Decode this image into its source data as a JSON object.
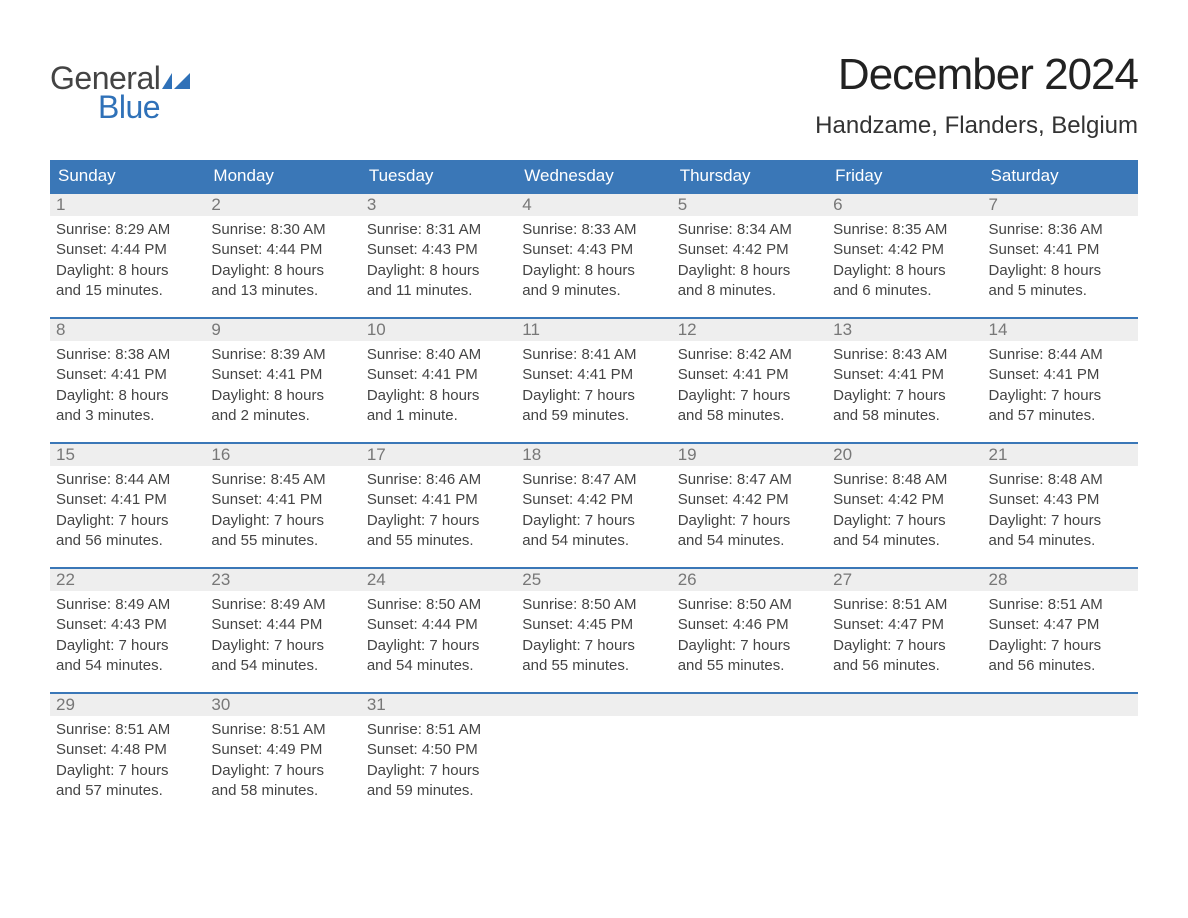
{
  "logo": {
    "text_general": "General",
    "text_blue": "Blue",
    "flag_color": "#2f71b8"
  },
  "title": "December 2024",
  "location": "Handzame, Flanders, Belgium",
  "colors": {
    "header_bg": "#3a77b7",
    "header_text": "#ffffff",
    "daynum_bg": "#eeeeee",
    "daynum_text": "#777777",
    "body_text": "#444444",
    "rule": "#3a77b7",
    "page_bg": "#ffffff",
    "title_text": "#222222",
    "logo_general": "#444444",
    "logo_blue": "#2f71b8"
  },
  "typography": {
    "title_fontsize": 44,
    "location_fontsize": 24,
    "weekday_fontsize": 17,
    "daynum_fontsize": 17,
    "body_fontsize": 15,
    "logo_fontsize": 32,
    "font_family": "Arial"
  },
  "weekdays": [
    "Sunday",
    "Monday",
    "Tuesday",
    "Wednesday",
    "Thursday",
    "Friday",
    "Saturday"
  ],
  "weeks": [
    [
      {
        "n": "1",
        "sunrise": "Sunrise: 8:29 AM",
        "sunset": "Sunset: 4:44 PM",
        "dl1": "Daylight: 8 hours",
        "dl2": "and 15 minutes."
      },
      {
        "n": "2",
        "sunrise": "Sunrise: 8:30 AM",
        "sunset": "Sunset: 4:44 PM",
        "dl1": "Daylight: 8 hours",
        "dl2": "and 13 minutes."
      },
      {
        "n": "3",
        "sunrise": "Sunrise: 8:31 AM",
        "sunset": "Sunset: 4:43 PM",
        "dl1": "Daylight: 8 hours",
        "dl2": "and 11 minutes."
      },
      {
        "n": "4",
        "sunrise": "Sunrise: 8:33 AM",
        "sunset": "Sunset: 4:43 PM",
        "dl1": "Daylight: 8 hours",
        "dl2": "and 9 minutes."
      },
      {
        "n": "5",
        "sunrise": "Sunrise: 8:34 AM",
        "sunset": "Sunset: 4:42 PM",
        "dl1": "Daylight: 8 hours",
        "dl2": "and 8 minutes."
      },
      {
        "n": "6",
        "sunrise": "Sunrise: 8:35 AM",
        "sunset": "Sunset: 4:42 PM",
        "dl1": "Daylight: 8 hours",
        "dl2": "and 6 minutes."
      },
      {
        "n": "7",
        "sunrise": "Sunrise: 8:36 AM",
        "sunset": "Sunset: 4:41 PM",
        "dl1": "Daylight: 8 hours",
        "dl2": "and 5 minutes."
      }
    ],
    [
      {
        "n": "8",
        "sunrise": "Sunrise: 8:38 AM",
        "sunset": "Sunset: 4:41 PM",
        "dl1": "Daylight: 8 hours",
        "dl2": "and 3 minutes."
      },
      {
        "n": "9",
        "sunrise": "Sunrise: 8:39 AM",
        "sunset": "Sunset: 4:41 PM",
        "dl1": "Daylight: 8 hours",
        "dl2": "and 2 minutes."
      },
      {
        "n": "10",
        "sunrise": "Sunrise: 8:40 AM",
        "sunset": "Sunset: 4:41 PM",
        "dl1": "Daylight: 8 hours",
        "dl2": "and 1 minute."
      },
      {
        "n": "11",
        "sunrise": "Sunrise: 8:41 AM",
        "sunset": "Sunset: 4:41 PM",
        "dl1": "Daylight: 7 hours",
        "dl2": "and 59 minutes."
      },
      {
        "n": "12",
        "sunrise": "Sunrise: 8:42 AM",
        "sunset": "Sunset: 4:41 PM",
        "dl1": "Daylight: 7 hours",
        "dl2": "and 58 minutes."
      },
      {
        "n": "13",
        "sunrise": "Sunrise: 8:43 AM",
        "sunset": "Sunset: 4:41 PM",
        "dl1": "Daylight: 7 hours",
        "dl2": "and 58 minutes."
      },
      {
        "n": "14",
        "sunrise": "Sunrise: 8:44 AM",
        "sunset": "Sunset: 4:41 PM",
        "dl1": "Daylight: 7 hours",
        "dl2": "and 57 minutes."
      }
    ],
    [
      {
        "n": "15",
        "sunrise": "Sunrise: 8:44 AM",
        "sunset": "Sunset: 4:41 PM",
        "dl1": "Daylight: 7 hours",
        "dl2": "and 56 minutes."
      },
      {
        "n": "16",
        "sunrise": "Sunrise: 8:45 AM",
        "sunset": "Sunset: 4:41 PM",
        "dl1": "Daylight: 7 hours",
        "dl2": "and 55 minutes."
      },
      {
        "n": "17",
        "sunrise": "Sunrise: 8:46 AM",
        "sunset": "Sunset: 4:41 PM",
        "dl1": "Daylight: 7 hours",
        "dl2": "and 55 minutes."
      },
      {
        "n": "18",
        "sunrise": "Sunrise: 8:47 AM",
        "sunset": "Sunset: 4:42 PM",
        "dl1": "Daylight: 7 hours",
        "dl2": "and 54 minutes."
      },
      {
        "n": "19",
        "sunrise": "Sunrise: 8:47 AM",
        "sunset": "Sunset: 4:42 PM",
        "dl1": "Daylight: 7 hours",
        "dl2": "and 54 minutes."
      },
      {
        "n": "20",
        "sunrise": "Sunrise: 8:48 AM",
        "sunset": "Sunset: 4:42 PM",
        "dl1": "Daylight: 7 hours",
        "dl2": "and 54 minutes."
      },
      {
        "n": "21",
        "sunrise": "Sunrise: 8:48 AM",
        "sunset": "Sunset: 4:43 PM",
        "dl1": "Daylight: 7 hours",
        "dl2": "and 54 minutes."
      }
    ],
    [
      {
        "n": "22",
        "sunrise": "Sunrise: 8:49 AM",
        "sunset": "Sunset: 4:43 PM",
        "dl1": "Daylight: 7 hours",
        "dl2": "and 54 minutes."
      },
      {
        "n": "23",
        "sunrise": "Sunrise: 8:49 AM",
        "sunset": "Sunset: 4:44 PM",
        "dl1": "Daylight: 7 hours",
        "dl2": "and 54 minutes."
      },
      {
        "n": "24",
        "sunrise": "Sunrise: 8:50 AM",
        "sunset": "Sunset: 4:44 PM",
        "dl1": "Daylight: 7 hours",
        "dl2": "and 54 minutes."
      },
      {
        "n": "25",
        "sunrise": "Sunrise: 8:50 AM",
        "sunset": "Sunset: 4:45 PM",
        "dl1": "Daylight: 7 hours",
        "dl2": "and 55 minutes."
      },
      {
        "n": "26",
        "sunrise": "Sunrise: 8:50 AM",
        "sunset": "Sunset: 4:46 PM",
        "dl1": "Daylight: 7 hours",
        "dl2": "and 55 minutes."
      },
      {
        "n": "27",
        "sunrise": "Sunrise: 8:51 AM",
        "sunset": "Sunset: 4:47 PM",
        "dl1": "Daylight: 7 hours",
        "dl2": "and 56 minutes."
      },
      {
        "n": "28",
        "sunrise": "Sunrise: 8:51 AM",
        "sunset": "Sunset: 4:47 PM",
        "dl1": "Daylight: 7 hours",
        "dl2": "and 56 minutes."
      }
    ],
    [
      {
        "n": "29",
        "sunrise": "Sunrise: 8:51 AM",
        "sunset": "Sunset: 4:48 PM",
        "dl1": "Daylight: 7 hours",
        "dl2": "and 57 minutes."
      },
      {
        "n": "30",
        "sunrise": "Sunrise: 8:51 AM",
        "sunset": "Sunset: 4:49 PM",
        "dl1": "Daylight: 7 hours",
        "dl2": "and 58 minutes."
      },
      {
        "n": "31",
        "sunrise": "Sunrise: 8:51 AM",
        "sunset": "Sunset: 4:50 PM",
        "dl1": "Daylight: 7 hours",
        "dl2": "and 59 minutes."
      },
      {
        "n": "",
        "sunrise": "",
        "sunset": "",
        "dl1": "",
        "dl2": ""
      },
      {
        "n": "",
        "sunrise": "",
        "sunset": "",
        "dl1": "",
        "dl2": ""
      },
      {
        "n": "",
        "sunrise": "",
        "sunset": "",
        "dl1": "",
        "dl2": ""
      },
      {
        "n": "",
        "sunrise": "",
        "sunset": "",
        "dl1": "",
        "dl2": ""
      }
    ]
  ]
}
